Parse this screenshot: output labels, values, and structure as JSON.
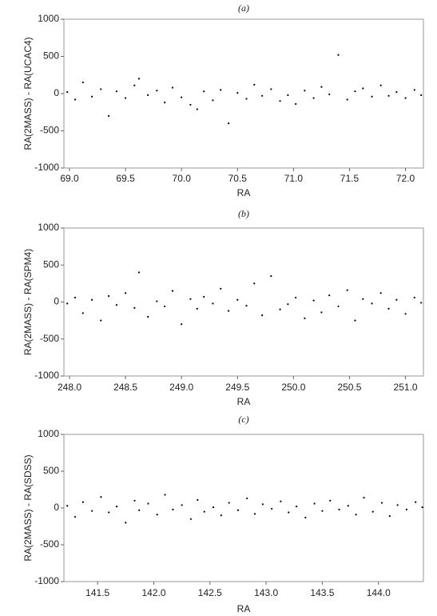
{
  "chart_data": [
    {
      "type": "scatter",
      "title": "(a)",
      "x_label": "RA",
      "y_label": "RA(2MASS) - RA(UCAC4)",
      "color": "#000000",
      "x": [
        68.98,
        69.05,
        69.12,
        69.2,
        69.28,
        69.35,
        69.42,
        69.5,
        69.58,
        69.62,
        69.7,
        69.78,
        69.85,
        69.92,
        70.0,
        70.08,
        70.14,
        70.2,
        70.28,
        70.35,
        70.42,
        70.5,
        70.58,
        70.65,
        70.72,
        70.8,
        70.88,
        70.95,
        71.02,
        71.1,
        71.18,
        71.25,
        71.32,
        71.4,
        71.48,
        71.55,
        71.62,
        71.7,
        71.78,
        71.85,
        71.92,
        72.0,
        72.08,
        72.14
      ],
      "values": [
        20,
        -80,
        150,
        -40,
        60,
        -300,
        30,
        -60,
        110,
        200,
        -20,
        40,
        -120,
        80,
        -50,
        -150,
        -210,
        30,
        -90,
        50,
        -400,
        10,
        -70,
        120,
        -30,
        60,
        -100,
        -20,
        -140,
        40,
        -60,
        90,
        -10,
        520,
        -80,
        30,
        70,
        -40,
        110,
        -30,
        20,
        -60,
        50,
        -20
      ],
      "xlim": [
        68.95,
        72.16
      ],
      "ylim": [
        -1000,
        1000
      ],
      "xticks": [
        {
          "value": 69,
          "label": "69.0"
        },
        {
          "value": 69.5,
          "label": "69.5"
        },
        {
          "value": 70,
          "label": "70.0"
        },
        {
          "value": 70.5,
          "label": "70.5"
        },
        {
          "value": 71,
          "label": "71.0"
        },
        {
          "value": 71.5,
          "label": "71.5"
        },
        {
          "value": 72,
          "label": "72.0"
        }
      ],
      "yticks": [
        -1000,
        -500,
        0,
        500,
        1000
      ]
    },
    {
      "type": "scatter",
      "title": "(b)",
      "x_label": "RA",
      "y_label": "RA(2MASS) - RA(SPM4)",
      "color": "#000000",
      "x": [
        247.98,
        248.05,
        248.12,
        248.2,
        248.28,
        248.35,
        248.42,
        248.5,
        248.58,
        248.62,
        248.7,
        248.78,
        248.85,
        248.92,
        249.0,
        249.08,
        249.14,
        249.2,
        249.28,
        249.35,
        249.42,
        249.5,
        249.58,
        249.65,
        249.72,
        249.8,
        249.88,
        249.95,
        250.02,
        250.1,
        250.18,
        250.25,
        250.32,
        250.4,
        250.48,
        250.55,
        250.62,
        250.7,
        250.78,
        250.85,
        250.92,
        251.0,
        251.08,
        251.14
      ],
      "values": [
        -20,
        60,
        -150,
        30,
        -250,
        80,
        -40,
        120,
        -80,
        400,
        -200,
        10,
        -60,
        150,
        -300,
        40,
        -90,
        70,
        -20,
        180,
        -120,
        30,
        -50,
        250,
        -180,
        350,
        -100,
        -30,
        60,
        -220,
        20,
        -140,
        90,
        -60,
        160,
        -250,
        40,
        -20,
        120,
        -90,
        30,
        -160,
        60,
        -10
      ],
      "xlim": [
        247.95,
        251.16
      ],
      "ylim": [
        -1000,
        1000
      ],
      "xticks": [
        {
          "value": 248,
          "label": "248.0"
        },
        {
          "value": 248.5,
          "label": "248.5"
        },
        {
          "value": 249,
          "label": "249.0"
        },
        {
          "value": 249.5,
          "label": "249.5"
        },
        {
          "value": 250,
          "label": "250.0"
        },
        {
          "value": 250.5,
          "label": "250.5"
        },
        {
          "value": 251,
          "label": "251.0"
        }
      ],
      "yticks": [
        -1000,
        -500,
        0,
        500,
        1000
      ]
    },
    {
      "type": "scatter",
      "title": "(c)",
      "x_label": "RA",
      "y_label": "RA(2MASS) - RA(SDSS)",
      "color": "#000000",
      "x": [
        141.23,
        141.3,
        141.37,
        141.45,
        141.53,
        141.6,
        141.67,
        141.75,
        141.83,
        141.87,
        141.95,
        142.03,
        142.1,
        142.17,
        142.25,
        142.33,
        142.39,
        142.45,
        142.53,
        142.6,
        142.67,
        142.75,
        142.83,
        142.9,
        142.97,
        143.05,
        143.13,
        143.2,
        143.27,
        143.35,
        143.43,
        143.5,
        143.57,
        143.65,
        143.73,
        143.8,
        143.87,
        143.95,
        144.03,
        144.1,
        144.17,
        144.25,
        144.33,
        144.39
      ],
      "values": [
        30,
        -120,
        80,
        -40,
        150,
        -60,
        20,
        -200,
        100,
        -30,
        60,
        -90,
        180,
        -20,
        40,
        -150,
        110,
        -50,
        10,
        -100,
        70,
        -30,
        130,
        -80,
        50,
        -10,
        90,
        -60,
        20,
        -130,
        60,
        -40,
        100,
        -20,
        30,
        -90,
        140,
        -50,
        70,
        -110,
        40,
        -20,
        80,
        10
      ],
      "xlim": [
        141.2,
        144.4
      ],
      "ylim": [
        -1000,
        1000
      ],
      "xticks": [
        {
          "value": 141.5,
          "label": "141.5"
        },
        {
          "value": 142,
          "label": "142.0"
        },
        {
          "value": 142.5,
          "label": "142.5"
        },
        {
          "value": 143,
          "label": "143.0"
        },
        {
          "value": 143.5,
          "label": "143.5"
        },
        {
          "value": 144,
          "label": "144.0"
        }
      ],
      "yticks": [
        -1000,
        -500,
        0,
        500,
        1000
      ]
    }
  ]
}
